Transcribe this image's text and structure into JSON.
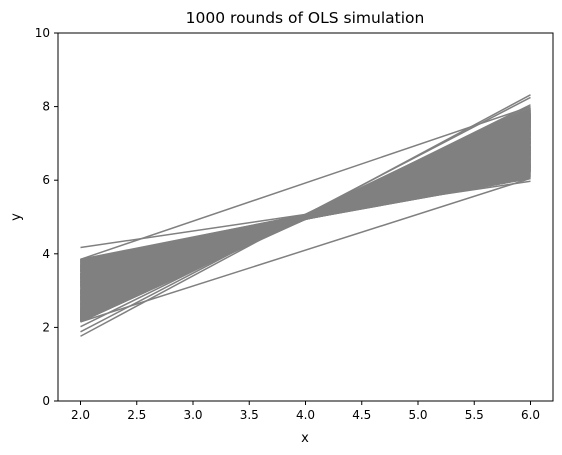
{
  "chart_data": {
    "type": "line",
    "title": "1000 rounds of OLS simulation",
    "xlabel": "x",
    "ylabel": "y",
    "xlim": [
      1.8,
      6.2
    ],
    "ylim": [
      0,
      10
    ],
    "x_ticks": [
      "2.0",
      "2.5",
      "3.0",
      "3.5",
      "4.0",
      "4.5",
      "5.0",
      "5.5",
      "6.0"
    ],
    "y_ticks": [
      "0",
      "2",
      "4",
      "6",
      "8",
      "10"
    ],
    "line_color": "#808080",
    "grid": false,
    "n_lines": 1000,
    "x": [
      2.0,
      6.0
    ],
    "band": {
      "y_at_x2": [
        2.15,
        3.85
      ],
      "y_at_x6": [
        6.05,
        8.0
      ],
      "pivot_x": 4.0,
      "pivot_y": 5.0
    },
    "series": [
      {
        "values": [
          4.17,
          5.97
        ]
      },
      {
        "values": [
          1.76,
          8.32
        ]
      },
      {
        "values": [
          1.88,
          8.25
        ]
      },
      {
        "values": [
          2.02,
          8.05
        ]
      },
      {
        "values": [
          2.15,
          8.0
        ]
      },
      {
        "values": [
          3.85,
          6.05
        ]
      },
      {
        "values": [
          2.15,
          6.05
        ]
      },
      {
        "values": [
          3.85,
          8.0
        ]
      }
    ]
  }
}
